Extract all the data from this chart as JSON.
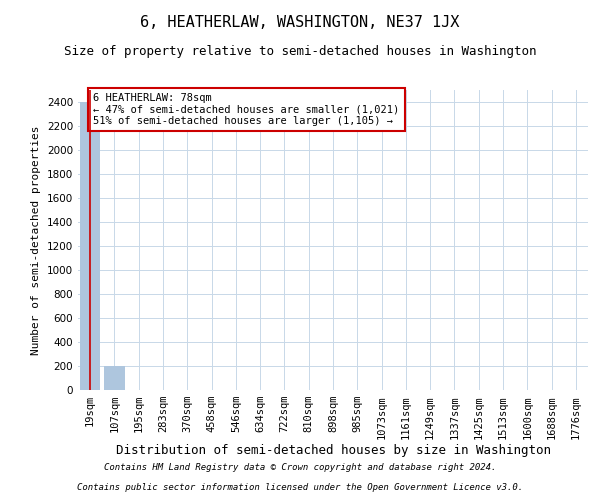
{
  "title": "6, HEATHERLAW, WASHINGTON, NE37 1JX",
  "subtitle": "Size of property relative to semi-detached houses in Washington",
  "xlabel": "Distribution of semi-detached houses by size in Washington",
  "ylabel": "Number of semi-detached properties",
  "footnote1": "Contains HM Land Registry data © Crown copyright and database right 2024.",
  "footnote2": "Contains public sector information licensed under the Open Government Licence v3.0.",
  "categories": [
    "19sqm",
    "107sqm",
    "195sqm",
    "283sqm",
    "370sqm",
    "458sqm",
    "546sqm",
    "634sqm",
    "722sqm",
    "810sqm",
    "898sqm",
    "985sqm",
    "1073sqm",
    "1161sqm",
    "1249sqm",
    "1337sqm",
    "1425sqm",
    "1513sqm",
    "1600sqm",
    "1688sqm",
    "1776sqm"
  ],
  "values": [
    2400,
    200,
    4,
    2,
    1,
    1,
    1,
    1,
    1,
    1,
    1,
    1,
    1,
    1,
    1,
    1,
    1,
    1,
    1,
    1,
    1
  ],
  "bar_color": "#aec6de",
  "vline_x": 0,
  "vline_color": "#cc0000",
  "annotation_line1": "6 HEATHERLAW: 78sqm",
  "annotation_line2": "← 47% of semi-detached houses are smaller (1,021)",
  "annotation_line3": "51% of semi-detached houses are larger (1,105) →",
  "annotation_box_color": "#cc0000",
  "ylim": [
    0,
    2500
  ],
  "yticks": [
    0,
    200,
    400,
    600,
    800,
    1000,
    1200,
    1400,
    1600,
    1800,
    2000,
    2200,
    2400
  ],
  "background_color": "#ffffff",
  "grid_color": "#c8d8e8",
  "title_fontsize": 11,
  "subtitle_fontsize": 9,
  "ylabel_fontsize": 8,
  "xlabel_fontsize": 9,
  "tick_fontsize": 7.5,
  "annotation_fontsize": 7.5,
  "footnote_fontsize": 6.5
}
